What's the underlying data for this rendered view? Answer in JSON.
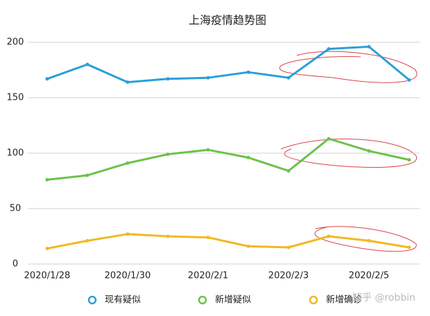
{
  "chart_data": {
    "type": "line",
    "title": "上海疫情趋势图",
    "categories": [
      "2020/1/28",
      null,
      "2020/1/30",
      null,
      "2020/2/1",
      null,
      "2020/2/3",
      null,
      "2020/2/5",
      null
    ],
    "series": [
      {
        "name": "现有疑似",
        "color": "#2a9fd8",
        "values": [
          167,
          180,
          164,
          167,
          168,
          173,
          168,
          194,
          196,
          166
        ]
      },
      {
        "name": "新增疑似",
        "color": "#6cc24a",
        "values": [
          76,
          80,
          91,
          99,
          103,
          96,
          84,
          113,
          102,
          94
        ]
      },
      {
        "name": "新增确诊",
        "color": "#f2b824",
        "values": [
          14,
          21,
          27,
          25,
          24,
          16,
          15,
          25,
          21,
          15
        ]
      }
    ],
    "ylim": [
      0,
      200
    ],
    "yticks": [
      0,
      50,
      100,
      150,
      200
    ],
    "grid": true,
    "watermark": "知乎 @robbin"
  }
}
